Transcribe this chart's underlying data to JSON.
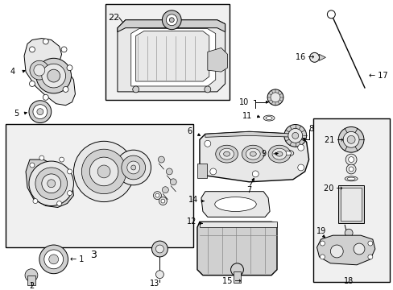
{
  "bg": "#ffffff",
  "lc": "#000000",
  "gray1": "#e8e8e8",
  "gray2": "#d0d0d0",
  "gray3": "#c0c0c0",
  "box_bg": "#eeeeee",
  "fs": 7.0,
  "lw": 0.7,
  "lw_med": 1.0,
  "lw_thick": 1.3
}
